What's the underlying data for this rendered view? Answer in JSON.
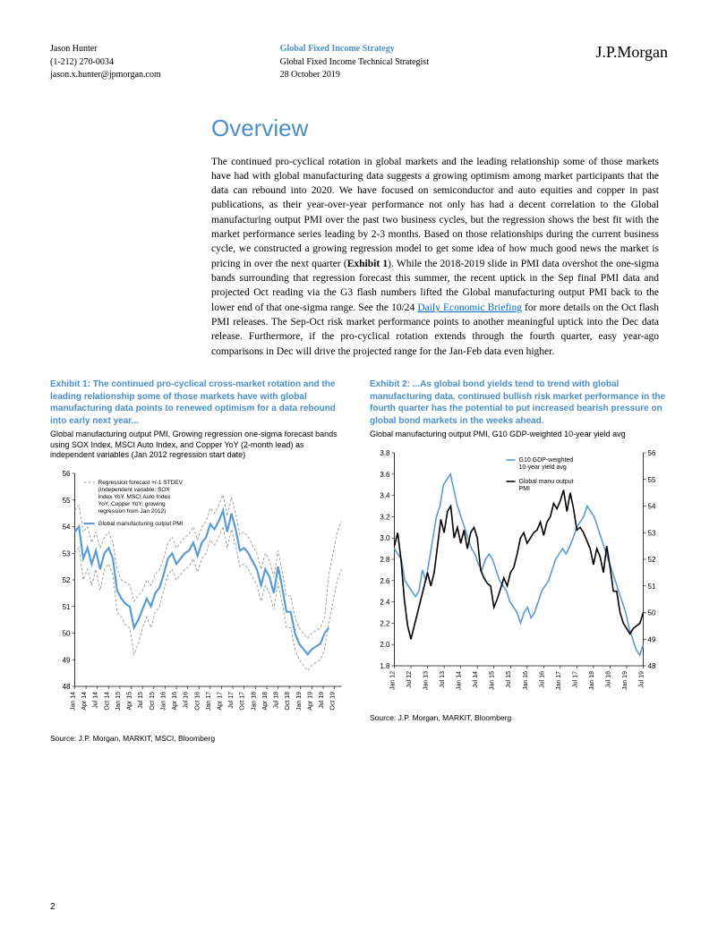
{
  "header": {
    "author_name": "Jason Hunter",
    "author_phone": "(1-212) 270-0034",
    "author_email": "jason.x.hunter@jpmorgan.com",
    "doc_group": "Global Fixed Income Strategy",
    "doc_role": "Global Fixed Income Technical Strategist",
    "doc_date": "28 October 2019",
    "logo_text": "J.P.Morgan"
  },
  "main": {
    "title": "Overview",
    "body_part1": "The continued pro-cyclical rotation in global markets and the leading relationship some of those markets have had with global manufacturing data suggests a growing optimism among market participants that the data can rebound into 2020.  We have focused on semiconductor and auto equities and copper in past publications, as their year-over-year performance not only has had a decent correlation to the Global manufacturing output PMI over the past two business cycles, but the regression shows the best fit with the market performance series leading by 2-3 months.  Based on those relationships during the current business cycle, we constructed a growing regression model to get some idea of how much good news the market is pricing in over the next quarter (",
    "body_exhibit1": "Exhibit 1",
    "body_part2": ").  While the 2018-2019 slide in PMI data overshot the one-sigma bands surrounding that regression forecast this summer, the recent uptick in the Sep final PMI data and projected Oct reading via the G3 flash numbers lifted the Global manufacturing output PMI back to the lower end of that one-sigma range.  See the 10/24 ",
    "body_link": "Daily Economic Briefing",
    "body_part3": " for more details on the Oct flash PMI releases.  The Sep-Oct risk market performance points to another meaningful uptick into the Dec data release.  Furthermore, if the pro-cyclical rotation extends through the fourth quarter, easy year-ago comparisons in Dec will drive the projected range for the Jan-Feb data even higher."
  },
  "exhibit1": {
    "title": "Exhibit 1: The continued pro-cyclical cross-market rotation and the leading relationship some of those markets have with global manufacturing data points to renewed optimism for a data rebound into early next year...",
    "subtitle": "Global manufacturing output PMI, Growing regression one-sigma forecast bands using SOX Index, MSCI Auto Index, and Copper YoY (2-month lead) as independent variables (Jan 2012 regression start date)",
    "source": "Source: J.P. Morgan, MARKIT, MSCI, Bloomberg",
    "legend_forecast": "Regression forecast +/-1 STDEV (Independent variable: SOX Index YoY, MSCI Auto Index YoY, Copper YoY;  growing regression from Jan 2012)",
    "legend_pmi": "Global manufacturing output PMI",
    "chart": {
      "type": "line",
      "ylim": [
        48,
        56
      ],
      "yticks": [
        48,
        49,
        50,
        51,
        52,
        53,
        54,
        55,
        56
      ],
      "xticks": [
        "Jan 14",
        "Apr 14",
        "Jul 14",
        "Oct 14",
        "Jan 15",
        "Apr 15",
        "Jul 15",
        "Oct 15",
        "Jan 16",
        "Apr 16",
        "Jul 16",
        "Oct 16",
        "Jan 17",
        "Apr 17",
        "Jul 17",
        "Oct 17",
        "Jan 18",
        "Apr 18",
        "Jul 18",
        "Oct 18",
        "Jan 19",
        "Apr 19",
        "Jul 19",
        "Oct 19"
      ],
      "series_pmi": {
        "color": "#5b9bd5",
        "width": 2.2,
        "data": [
          53.8,
          54.0,
          52.8,
          53.2,
          52.6,
          53.1,
          52.4,
          53.0,
          53.2,
          52.8,
          51.6,
          51.3,
          51.1,
          51.0,
          50.2,
          50.5,
          50.9,
          51.3,
          51.0,
          51.5,
          51.7,
          52.2,
          52.8,
          53.0,
          52.6,
          52.8,
          53.0,
          53.1,
          53.4,
          52.9,
          53.4,
          53.6,
          54.1,
          53.9,
          54.2,
          54.6,
          53.8,
          54.5,
          53.9,
          53.1,
          53.2,
          53.0,
          52.7,
          52.4,
          51.8,
          52.4,
          52.1,
          51.5,
          52.5,
          51.7,
          50.8,
          50.8,
          50.0,
          49.6,
          49.4,
          49.2,
          49.4,
          49.5,
          49.6,
          50.0,
          50.2
        ]
      },
      "series_upper": {
        "color": "#999999",
        "dash": "3,2",
        "width": 0.9,
        "data": [
          54.6,
          54.8,
          53.8,
          54.0,
          53.4,
          53.8,
          53.2,
          53.6,
          53.8,
          53.4,
          52.4,
          52.0,
          51.9,
          51.8,
          51.2,
          51.4,
          51.6,
          52.0,
          51.8,
          52.2,
          52.4,
          52.8,
          53.4,
          53.6,
          53.2,
          53.4,
          53.6,
          53.7,
          54.0,
          53.5,
          54.0,
          54.2,
          54.7,
          54.5,
          54.8,
          55.2,
          54.4,
          55.1,
          54.5,
          53.7,
          53.8,
          53.6,
          53.3,
          53.0,
          52.4,
          53.0,
          52.7,
          52.1,
          53.1,
          52.3,
          51.4,
          51.4,
          50.6,
          50.2,
          50.0,
          49.8,
          50.0,
          50.1,
          50.2,
          50.6,
          52.2,
          53.0,
          53.8,
          54.2
        ]
      },
      "series_lower": {
        "color": "#999999",
        "dash": "3,2",
        "width": 0.9,
        "data": [
          53.0,
          53.2,
          52.0,
          52.4,
          51.8,
          52.4,
          51.6,
          52.4,
          52.6,
          52.2,
          50.8,
          50.6,
          50.3,
          50.2,
          49.2,
          49.6,
          50.2,
          50.6,
          50.2,
          50.8,
          51.0,
          51.6,
          52.2,
          52.4,
          52.0,
          52.2,
          52.4,
          52.5,
          52.8,
          52.3,
          52.8,
          53.0,
          53.5,
          53.3,
          53.6,
          54.0,
          53.2,
          53.9,
          53.3,
          52.5,
          52.6,
          52.4,
          52.1,
          51.8,
          51.2,
          51.8,
          51.5,
          50.9,
          51.9,
          51.1,
          50.2,
          50.2,
          49.4,
          49.0,
          48.8,
          48.6,
          48.8,
          48.9,
          49.0,
          49.4,
          50.4,
          51.2,
          52.0,
          52.4
        ]
      },
      "background_color": "#ffffff",
      "grid_color": "#dddddd",
      "axis_color": "#000000",
      "tick_fontsize": 8
    }
  },
  "exhibit2": {
    "title": "Exhibit 2: ...As global bond yields tend to trend with global manufacturing data, continued bullish risk market performance in the fourth quarter has the potential to put increased bearish pressure on global bond markets in the weeks ahead.",
    "subtitle": "Global manufacturing output PMI, G10 GDP-weighted 10-year yield avg",
    "source": "Source: J.P. Morgan, MARKIT, Bloomberg",
    "legend_yield": "G10 GDP-weighted 10-year yield avg",
    "legend_pmi": "Global manu output PMI",
    "chart": {
      "type": "line",
      "ylim_left": [
        1.8,
        3.8
      ],
      "yticks_left": [
        1.8,
        2.0,
        2.2,
        2.4,
        2.6,
        2.8,
        3.0,
        3.2,
        3.4,
        3.6,
        3.8
      ],
      "ylim_right": [
        48,
        56
      ],
      "yticks_right": [
        48,
        49,
        50,
        51,
        52,
        53,
        54,
        55,
        56
      ],
      "xticks": [
        "Jan 12",
        "Jul 12",
        "Jan 13",
        "Jul 13",
        "Jan 14",
        "Jul 14",
        "Jan 15",
        "Jul 15",
        "Jan 16",
        "Jul 16",
        "Jan 17",
        "Jul 17",
        "Jan 18",
        "Jul 18",
        "Jan 19",
        "Jul 19"
      ],
      "series_yield": {
        "color": "#5b9bd5",
        "width": 1.6,
        "data": [
          2.9,
          2.85,
          2.8,
          2.6,
          2.55,
          2.5,
          2.45,
          2.5,
          2.7,
          2.6,
          2.8,
          3.0,
          3.2,
          3.3,
          3.5,
          3.55,
          3.6,
          3.45,
          3.3,
          3.2,
          3.1,
          3.0,
          2.9,
          2.85,
          2.75,
          2.7,
          2.8,
          2.85,
          2.8,
          2.7,
          2.6,
          2.55,
          2.5,
          2.4,
          2.35,
          2.3,
          2.2,
          2.3,
          2.35,
          2.25,
          2.3,
          2.4,
          2.5,
          2.55,
          2.6,
          2.7,
          2.8,
          2.85,
          2.9,
          2.85,
          2.92,
          3.0,
          3.1,
          3.15,
          3.2,
          3.3,
          3.25,
          3.2,
          3.1,
          3.0,
          2.9,
          2.8,
          2.7,
          2.6,
          2.5,
          2.4,
          2.3,
          2.15,
          2.05,
          1.95,
          1.9,
          2.0
        ]
      },
      "series_pmi": {
        "color": "#000000",
        "width": 1.6,
        "data": [
          52.5,
          53.0,
          52.0,
          50.5,
          49.5,
          49.0,
          49.5,
          50.0,
          50.5,
          51.0,
          51.5,
          51.0,
          51.5,
          52.5,
          53.5,
          53.0,
          53.8,
          54.0,
          52.8,
          53.2,
          52.6,
          53.1,
          52.4,
          53.0,
          53.2,
          52.8,
          51.6,
          51.3,
          51.1,
          51.0,
          50.2,
          50.5,
          50.9,
          51.3,
          51.0,
          51.5,
          51.7,
          52.2,
          52.8,
          53.0,
          52.6,
          52.8,
          53.0,
          53.1,
          53.4,
          52.9,
          53.4,
          53.6,
          54.1,
          53.9,
          54.2,
          54.6,
          53.8,
          54.5,
          53.9,
          53.1,
          53.2,
          53.0,
          52.7,
          52.4,
          51.8,
          52.4,
          52.1,
          51.5,
          52.5,
          51.7,
          50.8,
          50.8,
          50.0,
          49.6,
          49.4,
          49.2,
          49.4,
          49.5,
          49.6,
          50.0
        ]
      },
      "background_color": "#ffffff",
      "grid_color": "#dddddd",
      "axis_color": "#000000",
      "tick_fontsize": 8
    }
  },
  "page_number": "2"
}
